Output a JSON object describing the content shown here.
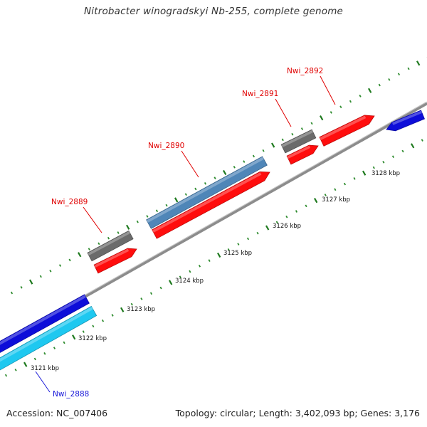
{
  "title": "Nitrobacter winogradskyi Nb-255, complete genome",
  "footer": {
    "accession": "Accession: NC_007406",
    "summary": "Topology: circular; Length: 3,402,093 bp; Genes: 3,176"
  },
  "colors": {
    "backbone": "#8c8c8c",
    "tick_major": "#1f7a1f",
    "tick_minor": "#2e8b2e",
    "red_gene": "#ff0d0d",
    "gray_gene": "#6b6b6b",
    "steelblue_gene": "#4f86b8",
    "blue_gene": "#0d0dd9",
    "cyan_gene": "#1ec8f0",
    "label_red": "#e00000",
    "label_blue": "#1a1ad9"
  },
  "scale": {
    "unit": "kbp",
    "labels": [
      "3121 kbp",
      "3122 kbp",
      "3123 kbp",
      "3124 kbp",
      "3125 kbp",
      "3126 kbp",
      "3127 kbp",
      "3128 kbp"
    ]
  },
  "features": [
    {
      "name": "Nwi_2888",
      "label": "Nwi_2888",
      "color_key": "cyan_gene",
      "label_color_key": "label_blue"
    },
    {
      "name": "blue-gene-left",
      "label": "",
      "color_key": "blue_gene"
    },
    {
      "name": "Nwi_2889",
      "label": "Nwi_2889",
      "color_key": "gray_gene",
      "label_color_key": "label_red"
    },
    {
      "name": "red-gene-a",
      "label": "",
      "color_key": "red_gene"
    },
    {
      "name": "Nwi_2890",
      "label": "Nwi_2890",
      "color_key": "steelblue_gene",
      "label_color_key": "label_red"
    },
    {
      "name": "red-gene-b",
      "label": "",
      "color_key": "red_gene"
    },
    {
      "name": "Nwi_2891",
      "label": "Nwi_2891",
      "color_key": "gray_gene",
      "label_color_key": "label_red"
    },
    {
      "name": "red-gene-c",
      "label": "",
      "color_key": "red_gene"
    },
    {
      "name": "Nwi_2892",
      "label": "Nwi_2892",
      "color_key": "red_gene",
      "label_color_key": "label_red"
    },
    {
      "name": "blue-gene-right",
      "label": "",
      "color_key": "blue_gene"
    }
  ]
}
